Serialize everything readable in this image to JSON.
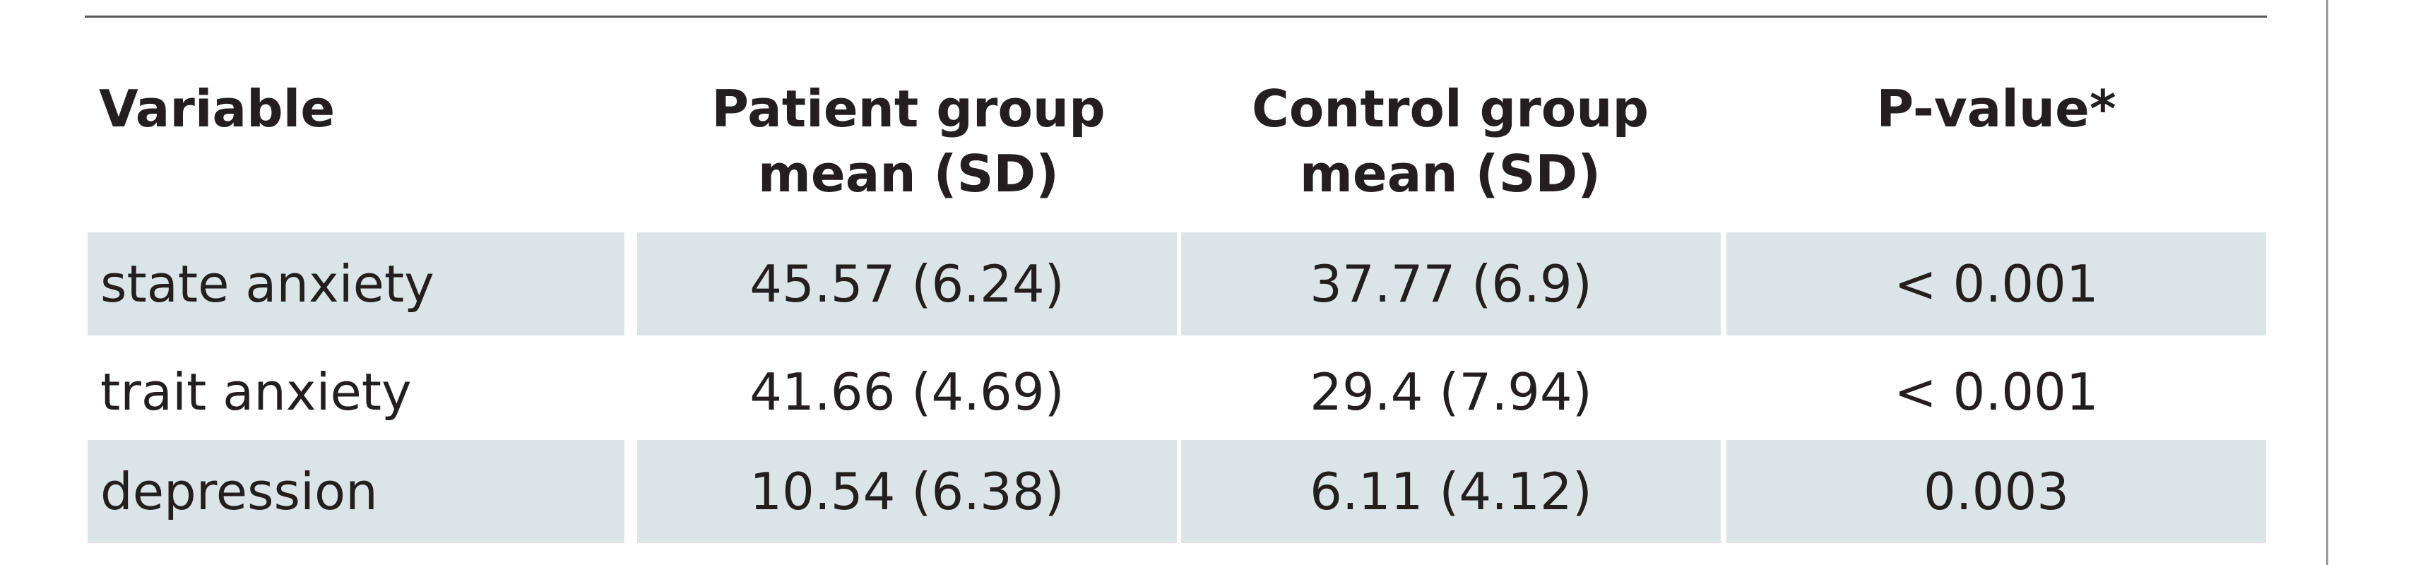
{
  "table": {
    "headers": {
      "variable": "Variable",
      "patient_line1": "Patient group",
      "patient_line2": "mean (SD)",
      "control_line1": "Control group",
      "control_line2": "mean (SD)",
      "pvalue": "P-value*"
    },
    "rows": [
      {
        "variable": "state anxiety",
        "patient": "45.57 (6.24)",
        "control": "37.77 (6.9)",
        "pvalue": "< 0.001"
      },
      {
        "variable": "trait anxiety",
        "patient": "41.66 (4.69)",
        "control": "29.4 (7.94)",
        "pvalue": "< 0.001"
      },
      {
        "variable": "depression",
        "patient": "10.54 (6.38)",
        "control": "6.11 (4.12)",
        "pvalue": "0.003"
      }
    ]
  },
  "colors": {
    "cell_background": "#dbe5e8",
    "text": "#231f20",
    "rule": "#555555"
  }
}
